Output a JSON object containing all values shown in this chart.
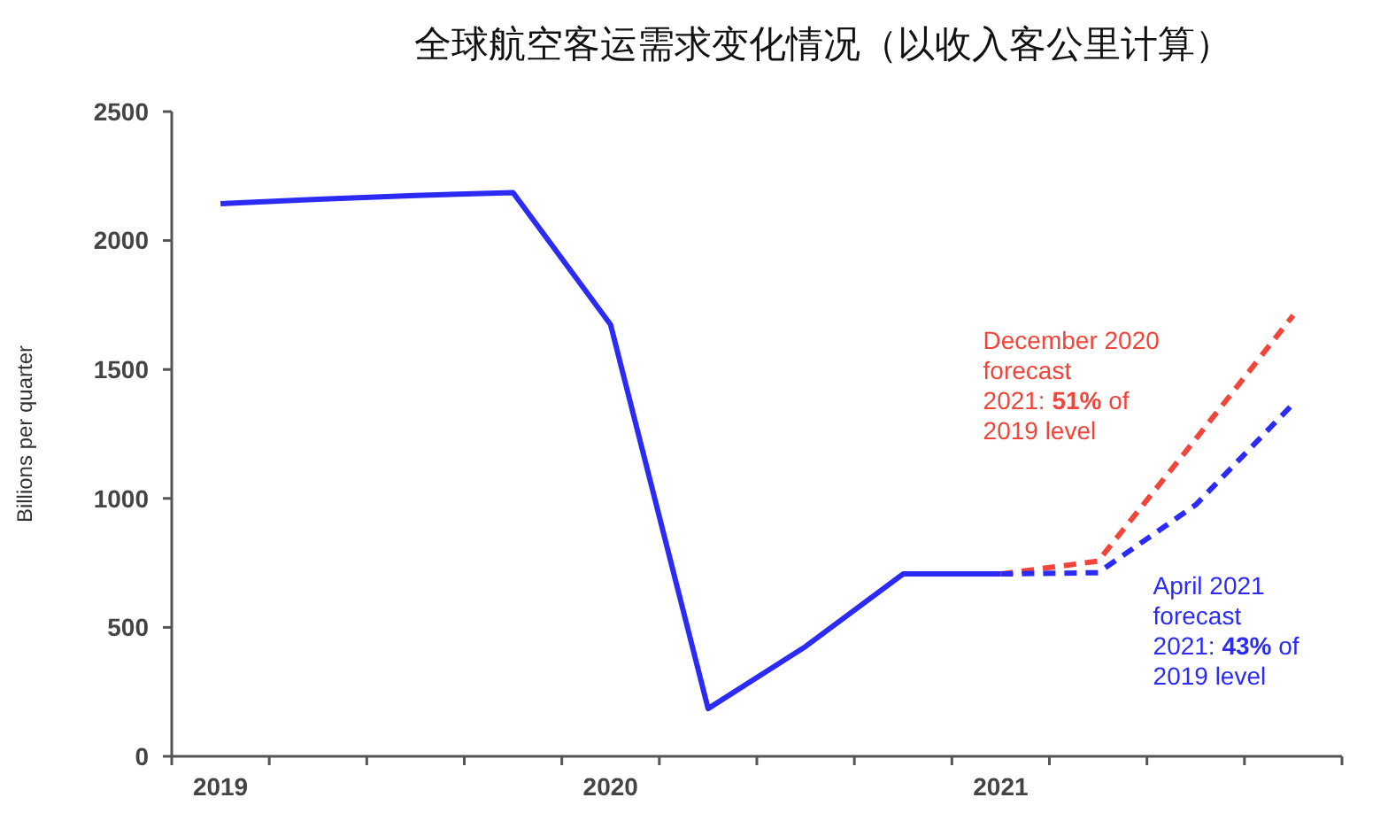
{
  "chart_data": {
    "type": "line",
    "title": "全球航空客运需求变化情况（以收入客公里计算）",
    "ylabel": "Billions per quarter",
    "categories": [
      "2019",
      null,
      null,
      null,
      "2020",
      null,
      null,
      null,
      "2021",
      null,
      null,
      null
    ],
    "series": [
      {
        "color": "#2b2bf5",
        "line_style": "solid",
        "values": [
          2143,
          2160,
          2175,
          2186,
          1674,
          185,
          426,
          707,
          707,
          null,
          null,
          null
        ]
      },
      {
        "color": "#f0453a",
        "line_style": "dashed",
        "values": [
          null,
          null,
          null,
          null,
          null,
          null,
          null,
          null,
          707,
          757,
          1230,
          1710
        ]
      },
      {
        "color": "#2b2bf5",
        "line_style": "dashed",
        "values": [
          null,
          null,
          null,
          null,
          null,
          null,
          null,
          null,
          707,
          712,
          975,
          1367
        ]
      }
    ],
    "ylim": [
      0,
      2500
    ],
    "yticks": [
      0,
      500,
      1000,
      1500,
      2000,
      2500
    ],
    "grid": false,
    "annotations": [
      "December 2020\nforecast\n2021: 51% of\n2019 level",
      "April 2021\nforecast\n2021: 43% of\n2019 level"
    ]
  }
}
